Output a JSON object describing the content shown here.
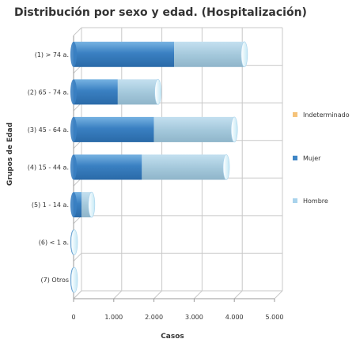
{
  "chart_data": {
    "type": "bar",
    "orientation": "horizontal",
    "stacked": true,
    "three_d": true,
    "title": "Distribución por sexo y edad. (Hospitalización)",
    "xlabel": "Casos",
    "ylabel": "Grupos de Edad",
    "categories": [
      "(1) > 74 a.",
      "(2) 65 - 74 a.",
      "(3) 45 - 64 a.",
      "(4) 15 - 44 a.",
      "(5) 1 - 14 a.",
      "(6) < 1 a.",
      "(7) Otros"
    ],
    "series": [
      {
        "name": "Mujer",
        "color": "#3f86c6",
        "values": [
          2500,
          1100,
          2000,
          1700,
          200,
          0,
          0
        ]
      },
      {
        "name": "Hombre",
        "color": "#a9d3ec",
        "values": [
          1750,
          1000,
          2000,
          2100,
          250,
          20,
          20
        ]
      },
      {
        "name": "Indeterminado",
        "color": "#f5c37a",
        "values": [
          0,
          0,
          0,
          0,
          0,
          0,
          0
        ]
      }
    ],
    "xlim": [
      0,
      5000
    ],
    "xticks": [
      0,
      1000,
      2000,
      3000,
      4000,
      5000
    ],
    "xtick_labels": [
      "0",
      "1.000",
      "2.000",
      "3.000",
      "4.000",
      "5.000"
    ],
    "legend_order": [
      "Indeterminado",
      "Mujer",
      "Hombre"
    ],
    "legend_position": "right",
    "grid": true
  }
}
